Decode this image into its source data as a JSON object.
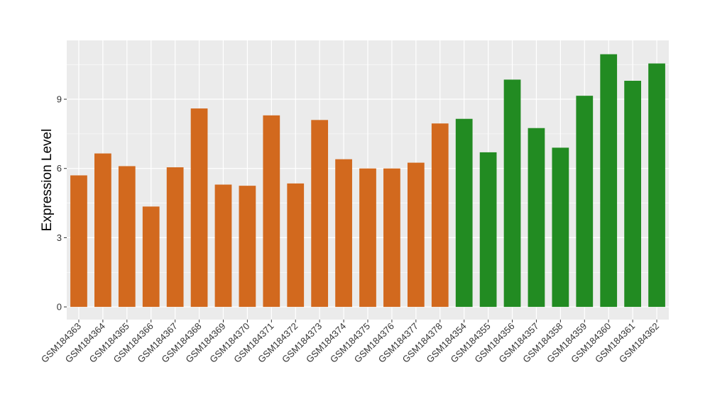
{
  "chart_data": {
    "type": "bar",
    "ylabel": "Expression Level",
    "xlabel": "",
    "ylim": [
      -0.55,
      11.55
    ],
    "yticks": [
      0,
      3,
      6,
      9
    ],
    "grid": true,
    "categories": [
      "GSM184363",
      "GSM184364",
      "GSM184365",
      "GSM184366",
      "GSM184367",
      "GSM184368",
      "GSM184369",
      "GSM184370",
      "GSM184371",
      "GSM184372",
      "GSM184373",
      "GSM184374",
      "GSM184375",
      "GSM184376",
      "GSM184377",
      "GSM184378",
      "GSM184354",
      "GSM184355",
      "GSM184356",
      "GSM184357",
      "GSM184358",
      "GSM184359",
      "GSM184360",
      "GSM184361",
      "GSM184362"
    ],
    "values": [
      5.7,
      6.65,
      6.1,
      4.35,
      6.05,
      8.6,
      5.3,
      5.25,
      8.3,
      5.35,
      8.1,
      6.4,
      6.0,
      6.0,
      6.25,
      7.95,
      8.15,
      6.7,
      9.85,
      7.75,
      6.9,
      9.15,
      10.95,
      9.8,
      10.55
    ],
    "bar_colors": [
      "#D2691E",
      "#D2691E",
      "#D2691E",
      "#D2691E",
      "#D2691E",
      "#D2691E",
      "#D2691E",
      "#D2691E",
      "#D2691E",
      "#D2691E",
      "#D2691E",
      "#D2691E",
      "#D2691E",
      "#D2691E",
      "#D2691E",
      "#D2691E",
      "#228B22",
      "#228B22",
      "#228B22",
      "#228B22",
      "#228B22",
      "#228B22",
      "#228B22",
      "#228B22",
      "#228B22"
    ],
    "panel_background": "#EBEBEB",
    "grid_color": "#FFFFFF"
  }
}
